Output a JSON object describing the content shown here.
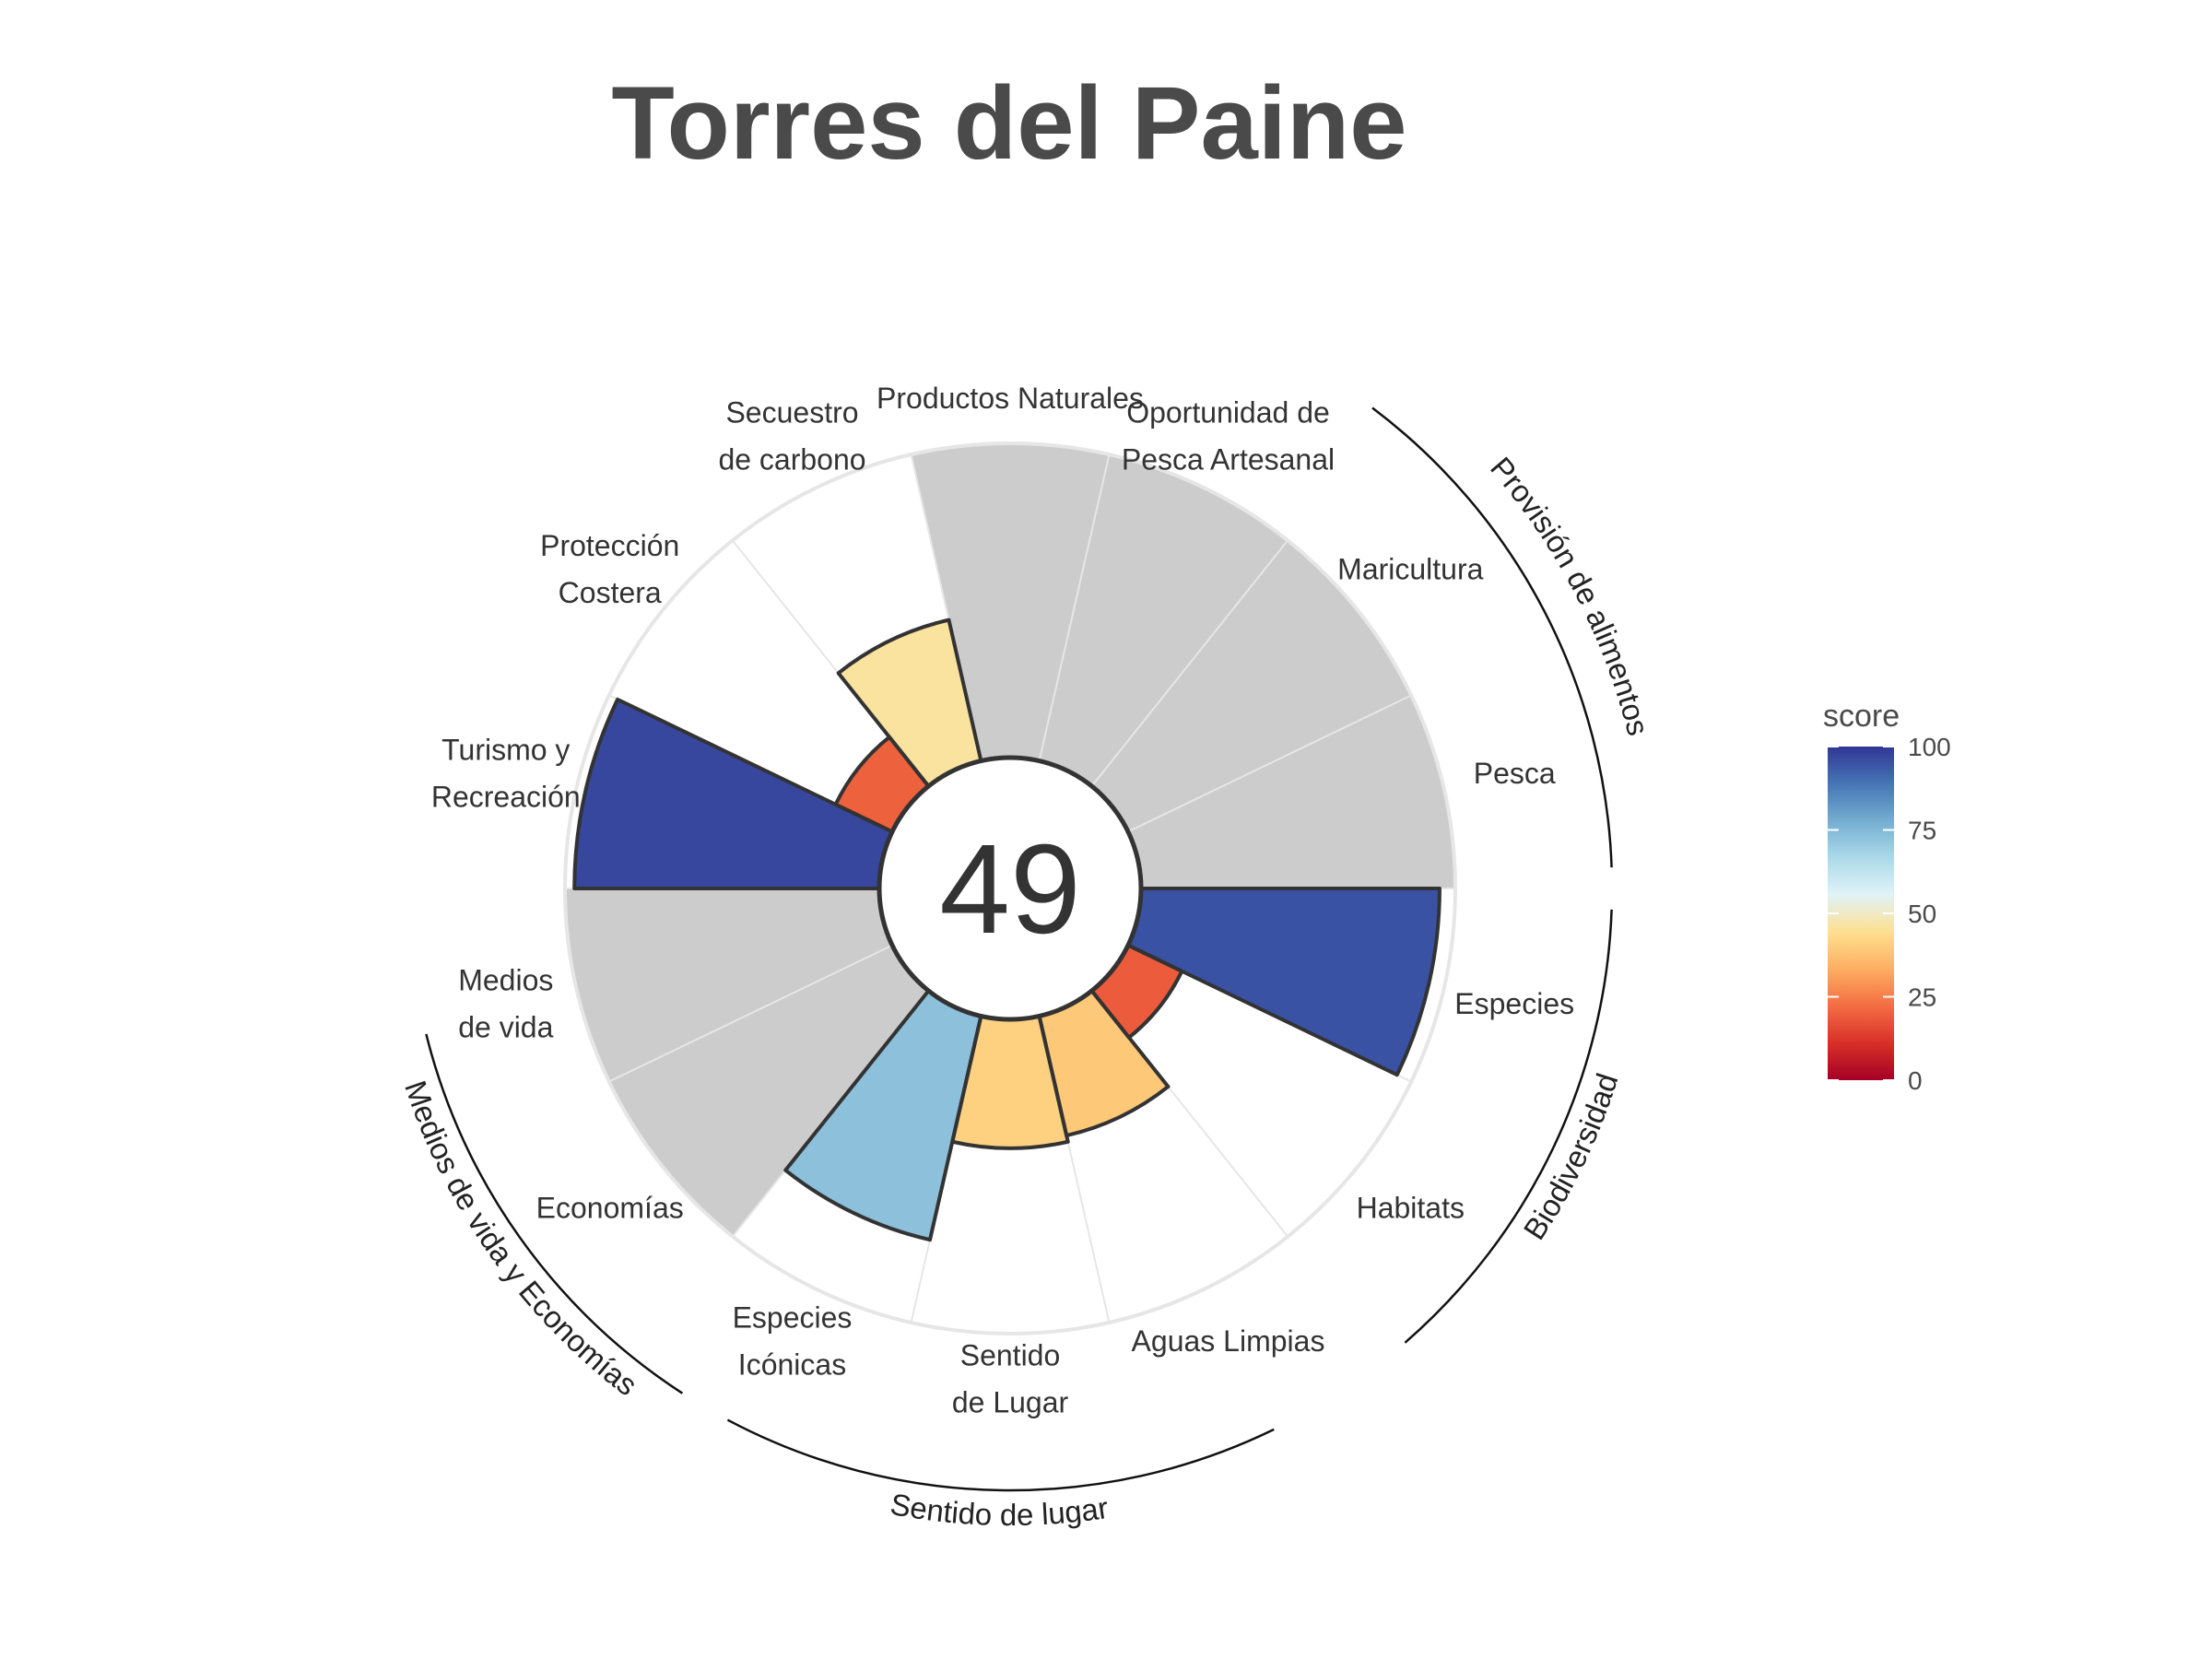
{
  "chart_data": {
    "type": "polar-bar",
    "title": "Torres del Paine",
    "overall_score": "49",
    "score_max": 100,
    "goals": [
      {
        "label_lines": [
          "Pesca"
        ],
        "value": null
      },
      {
        "label_lines": [
          "Maricultura"
        ],
        "value": null
      },
      {
        "label_lines": [
          "Oportunidad de",
          "Pesca Artesanal"
        ],
        "value": null
      },
      {
        "label_lines": [
          "Productos Naturales"
        ],
        "value": null
      },
      {
        "label_lines": [
          "Secuestro",
          "de carbono"
        ],
        "value": 46
      },
      {
        "label_lines": [
          "Protección",
          "Costera"
        ],
        "value": 20
      },
      {
        "label_lines": [
          "Turismo y",
          "Recreación"
        ],
        "value": 97
      },
      {
        "label_lines": [
          "Medios",
          "de vida"
        ],
        "value": null
      },
      {
        "label_lines": [
          "Economías"
        ],
        "value": null
      },
      {
        "label_lines": [
          "Especies",
          "Icónicas"
        ],
        "value": 73
      },
      {
        "label_lines": [
          "Sentido",
          "de Lugar"
        ],
        "value": 41
      },
      {
        "label_lines": [
          "Aguas Limpias"
        ],
        "value": 39
      },
      {
        "label_lines": [
          "Habitats"
        ],
        "value": 19
      },
      {
        "label_lines": [
          "Especies"
        ],
        "value": 95
      }
    ],
    "groups": [
      {
        "label": "Provisión de alimentos"
      },
      {
        "label": "Biodiversidad"
      },
      {
        "label": "Sentido de lugar"
      },
      {
        "label": "Medios de vida y Economías"
      }
    ],
    "legend": {
      "title": "score",
      "ticks": [
        "0",
        "25",
        "50",
        "75",
        "100"
      ],
      "colors": [
        "#a50026",
        "#d73027",
        "#f46d43",
        "#fdae61",
        "#fee090",
        "#e0f3f8",
        "#abd9e9",
        "#74add1",
        "#4575b4",
        "#313695"
      ]
    },
    "na_color": "#cccccc",
    "grid": true
  }
}
